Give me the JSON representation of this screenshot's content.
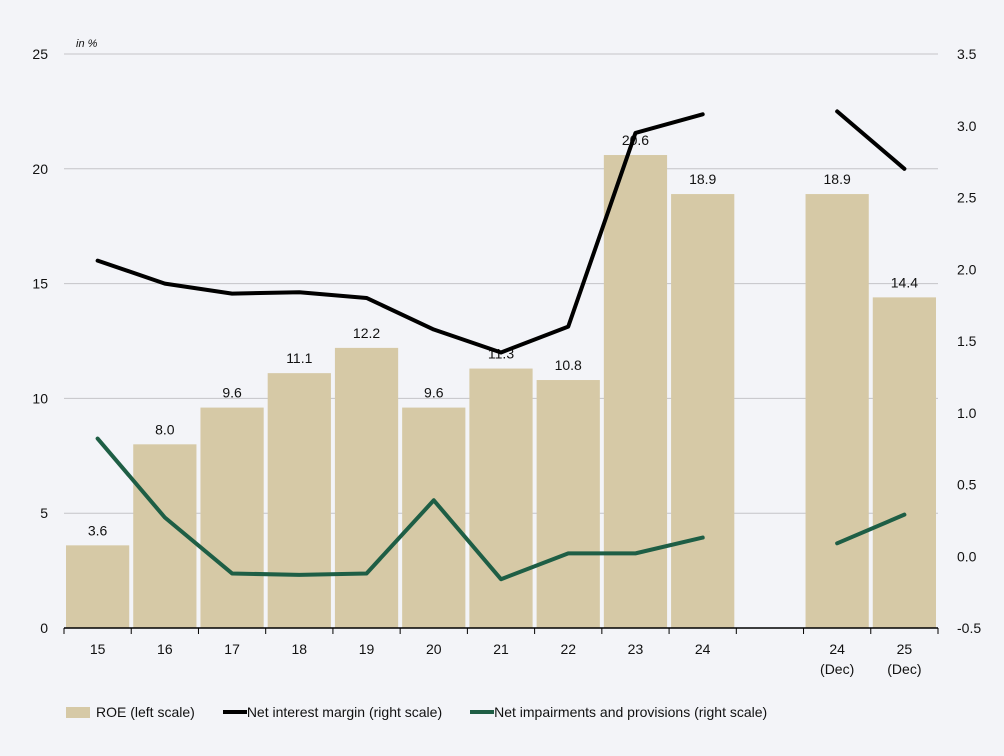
{
  "chart_data": {
    "type": "bar",
    "unit_label": "in %",
    "categories": [
      [
        "15"
      ],
      [
        "16"
      ],
      [
        "17"
      ],
      [
        "18"
      ],
      [
        "19"
      ],
      [
        "20"
      ],
      [
        "21"
      ],
      [
        "22"
      ],
      [
        "23"
      ],
      [
        "24"
      ],
      [
        ""
      ],
      [
        "24",
        "(Dec)"
      ],
      [
        "25",
        "(Dec)"
      ]
    ],
    "left_axis": {
      "ylim": [
        0,
        25
      ],
      "ticks": [
        "0",
        "5",
        "10",
        "15",
        "20",
        "25"
      ],
      "tick_values": [
        0,
        5,
        10,
        15,
        20,
        25
      ]
    },
    "right_axis": {
      "ylim": [
        -0.5,
        3.5
      ],
      "ticks": [
        "-0.5",
        "0.0",
        "0.5",
        "1.0",
        "1.5",
        "2.0",
        "2.5",
        "3.0",
        "3.5"
      ],
      "tick_values": [
        -0.5,
        0,
        0.5,
        1,
        1.5,
        2,
        2.5,
        3,
        3.5
      ]
    },
    "grid": true,
    "series": [
      {
        "name": "ROE (left scale)",
        "type": "bar",
        "axis": "left",
        "color": "#d6c9a6",
        "values": [
          3.6,
          8.0,
          9.6,
          11.1,
          12.2,
          9.6,
          11.3,
          10.8,
          20.6,
          18.9,
          null,
          18.9,
          14.4
        ],
        "labels": [
          "3.6",
          "8.0",
          "9.6",
          "11.1",
          "12.2",
          "9.6",
          "11.3",
          "10.8",
          "20.6",
          "18.9",
          "",
          "18.9",
          "14.4"
        ]
      },
      {
        "name": "Net interest margin (right scale)",
        "type": "line",
        "axis": "right",
        "color": "#000000",
        "values": [
          2.06,
          1.9,
          1.83,
          1.84,
          1.8,
          1.58,
          1.42,
          1.6,
          2.95,
          3.08,
          null,
          3.1,
          2.7
        ]
      },
      {
        "name": "Net impairments and provisions (right scale)",
        "type": "line",
        "axis": "right",
        "color": "#1e5e45",
        "values": [
          0.82,
          0.27,
          -0.12,
          -0.13,
          -0.12,
          0.39,
          -0.16,
          0.02,
          0.02,
          0.13,
          null,
          0.09,
          0.29
        ]
      }
    ],
    "legend_position": "bottom-left"
  }
}
